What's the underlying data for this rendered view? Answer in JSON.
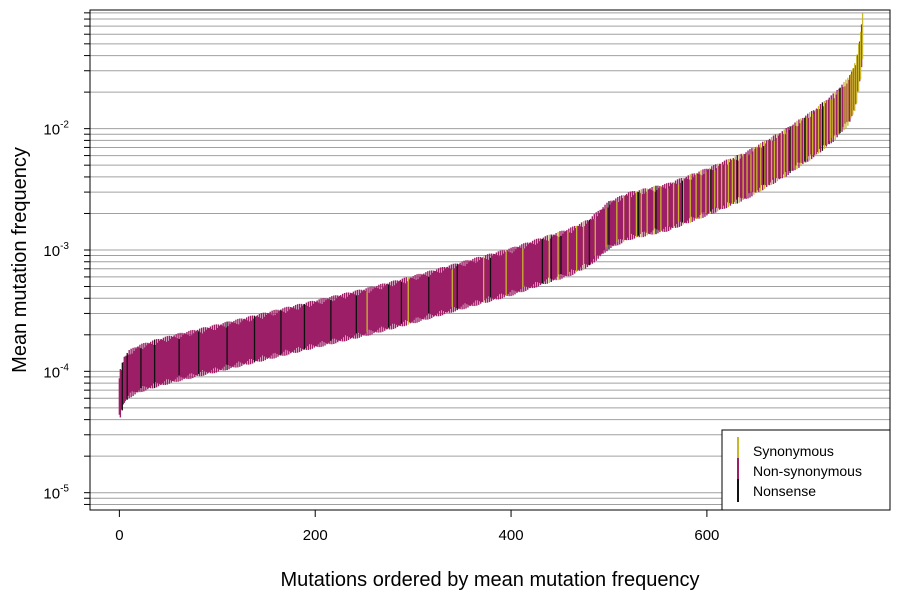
{
  "chart_data": {
    "type": "bar",
    "title": "",
    "xlabel": "Mutations ordered by mean mutation frequency",
    "ylabel": "Mean mutation frequency",
    "xlim": [
      -30,
      787
    ],
    "ylim": [
      7.2e-06,
      0.095
    ],
    "y_scale": "log",
    "x_ticks": [
      0,
      200,
      400,
      600
    ],
    "y_ticks": [
      {
        "value": 1e-05,
        "base": "10",
        "exp": "-5"
      },
      {
        "value": 0.0001,
        "base": "10",
        "exp": "-4"
      },
      {
        "value": 0.001,
        "base": "10",
        "exp": "-3"
      },
      {
        "value": 0.01,
        "base": "10",
        "exp": "-2"
      }
    ],
    "grid": "horizontal gridlines at minor log ticks",
    "legend_position": "bottom-right",
    "n_mutations": 760,
    "curve": {
      "x": [
        0,
        5,
        10,
        20,
        40,
        60,
        100,
        150,
        200,
        250,
        300,
        350,
        400,
        430,
        460,
        480,
        500,
        520,
        560,
        600,
        640,
        680,
        710,
        730,
        745,
        752,
        757,
        760
      ],
      "y": [
        6.2e-05,
        8.5e-05,
        9.5e-05,
        0.000105,
        0.000118,
        0.00013,
        0.000155,
        0.000195,
        0.000245,
        0.000305,
        0.00039,
        0.00051,
        0.00066,
        0.0008,
        0.00096,
        0.00115,
        0.0016,
        0.0019,
        0.00225,
        0.003,
        0.0041,
        0.0063,
        0.0092,
        0.0125,
        0.017,
        0.023,
        0.04,
        0.07
      ]
    },
    "series": [
      {
        "name": "Synonymous",
        "color": "#C8B62C"
      },
      {
        "name": "Non-synonymous",
        "color": "#9C1E66"
      },
      {
        "name": "Nonsense",
        "color": "#111111"
      }
    ],
    "synonymous_indices": [
      253,
      295,
      340,
      372,
      395,
      412,
      439,
      448,
      458,
      467,
      474,
      486,
      497,
      508,
      515,
      521,
      528,
      533,
      539,
      546,
      553,
      560,
      566,
      571,
      576,
      583,
      589,
      594,
      599,
      603,
      608,
      611,
      615,
      619,
      622,
      626,
      629,
      633,
      637,
      641,
      645,
      648,
      651,
      655,
      659,
      662,
      666,
      669,
      672,
      676,
      679,
      682,
      686,
      689,
      692,
      696,
      699,
      702,
      705,
      708,
      711,
      714,
      717,
      720,
      723,
      726,
      728,
      731,
      734,
      737,
      740,
      742,
      744,
      747,
      749,
      751,
      753,
      755,
      757,
      759
    ],
    "nonsense_indices": [
      3,
      8,
      22,
      36,
      61,
      81,
      110,
      138,
      165,
      189,
      216,
      242,
      275,
      288,
      316,
      345,
      379,
      432,
      441,
      451,
      480,
      500,
      530,
      548,
      575,
      604,
      631,
      658,
      685,
      700,
      718,
      736
    ]
  }
}
